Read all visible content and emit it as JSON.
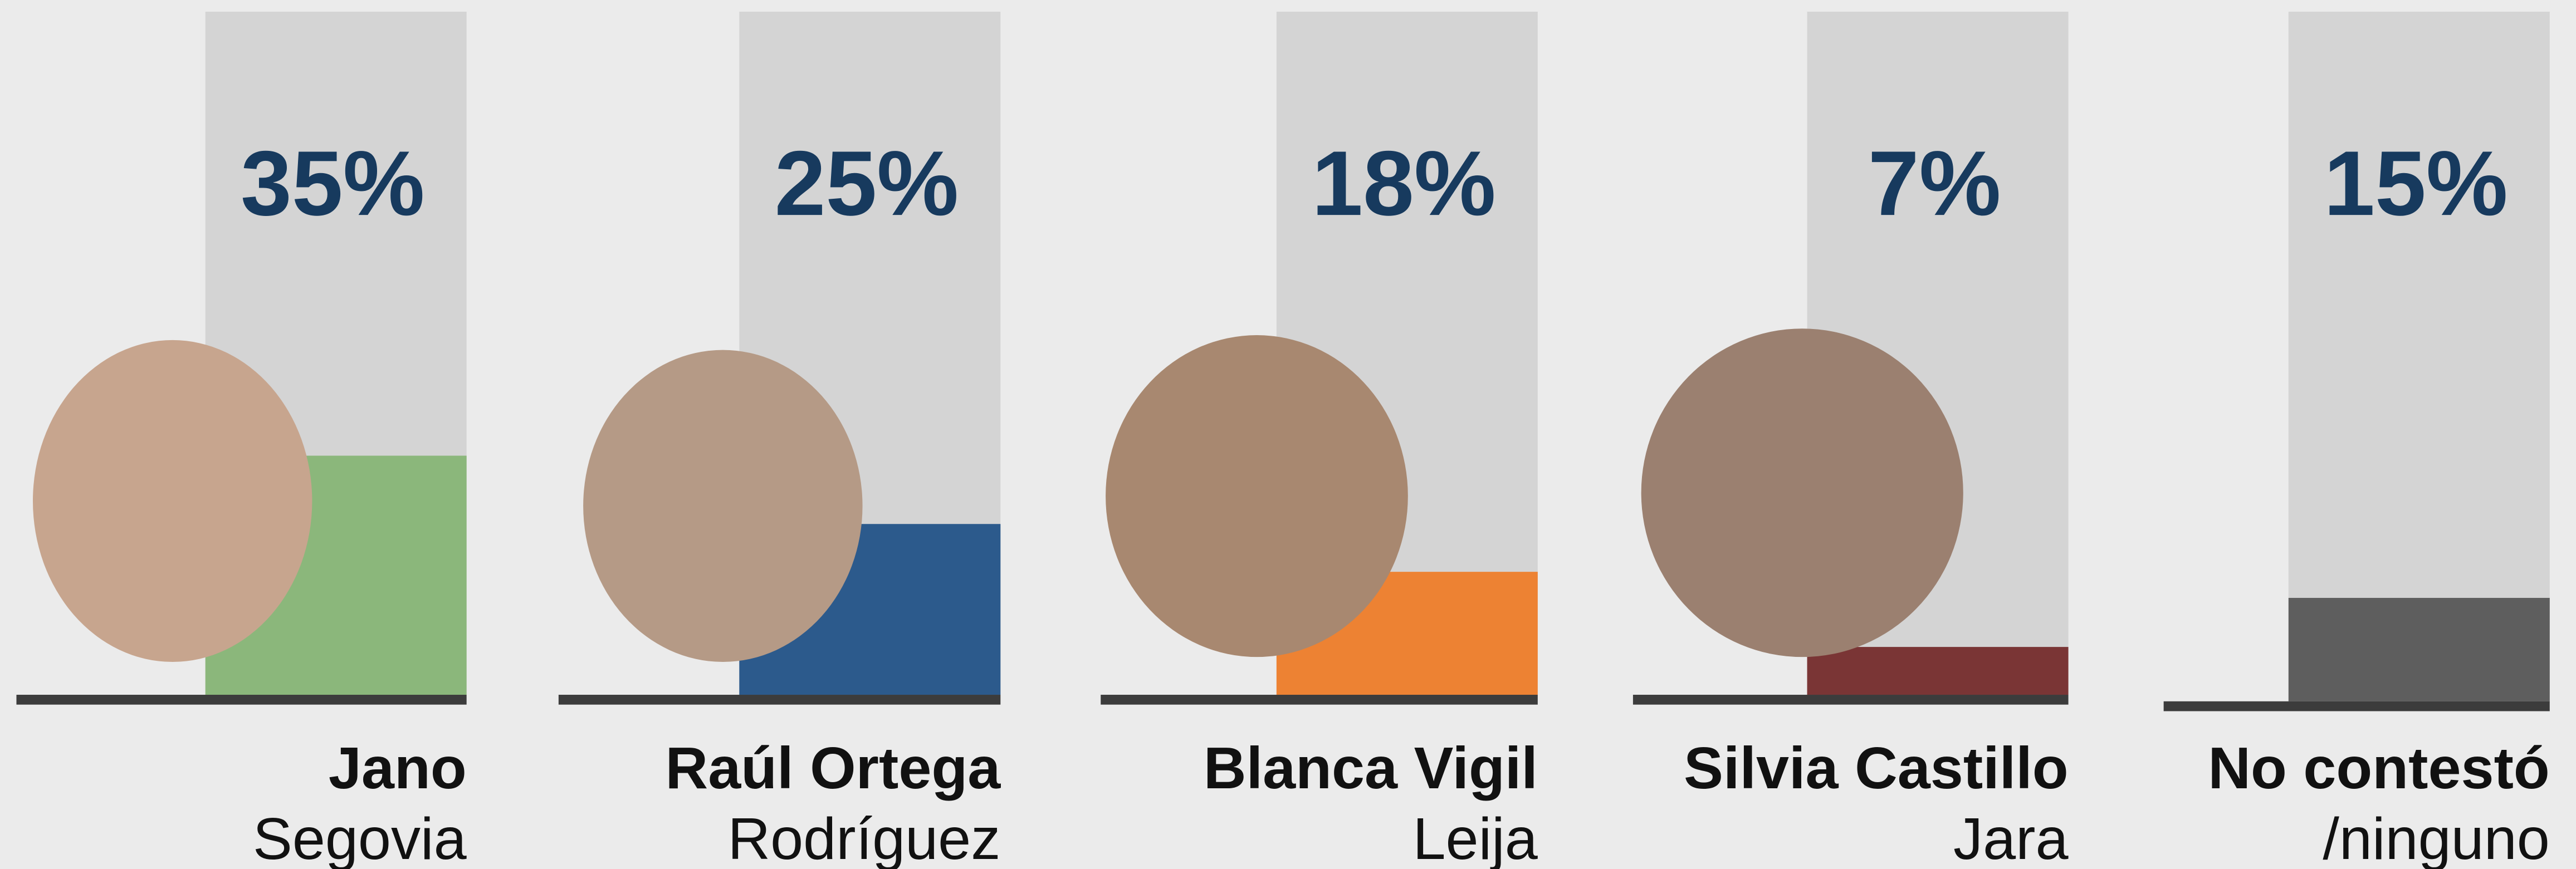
{
  "chart_data": {
    "type": "bar",
    "categories": [
      [
        "Jano",
        "Segovia"
      ],
      [
        "Raúl Ortega",
        "Rodríguez"
      ],
      [
        "Blanca Vigil",
        "Leija"
      ],
      [
        "Silvia Castillo",
        "Jara"
      ],
      [
        "No contestó",
        "/ninguno"
      ]
    ],
    "values": [
      35,
      25,
      18,
      7,
      15
    ],
    "value_labels": [
      "35%",
      "25%",
      "18%",
      "7%",
      "15%"
    ],
    "colors": [
      "#8bb77b",
      "#2c5a8c",
      "#ed8233",
      "#7a3535",
      "#5e5e5e"
    ],
    "ylim": [
      0,
      100
    ]
  }
}
